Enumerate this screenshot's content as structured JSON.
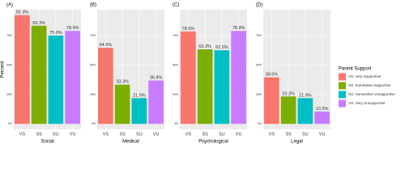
{
  "chart_data": [
    {
      "type": "bar",
      "title": "(A)",
      "x_label": "Social",
      "y_label": "Percent",
      "categories": [
        "VS",
        "SS",
        "SU",
        "VU"
      ],
      "values": [
        92.3,
        83.3,
        75.0,
        78.9
      ],
      "value_labels": [
        "92.3%",
        "83.3%",
        "75.0%",
        "78.9%"
      ],
      "colors": [
        "#F8766D",
        "#7CAE00",
        "#00BFC4",
        "#C77CFF"
      ],
      "ylim": [
        -4.6,
        96.9
      ],
      "yticks": [
        {
          "value": 0,
          "label": "0%"
        },
        {
          "value": 25,
          "label": "25%"
        },
        {
          "value": 50,
          "label": "50%"
        },
        {
          "value": 75,
          "label": "75%"
        }
      ],
      "grid": true
    },
    {
      "type": "bar",
      "title": "(B)",
      "x_label": "Medical",
      "categories": [
        "VS",
        "SS",
        "SU",
        "VU"
      ],
      "values": [
        64.6,
        33.3,
        21.9,
        36.8
      ],
      "value_labels": [
        "64.6%",
        "33.3%",
        "21.9%",
        "36.8%"
      ],
      "colors": [
        "#F8766D",
        "#7CAE00",
        "#00BFC4",
        "#C77CFF"
      ],
      "ylim": [
        -4.6,
        96.9
      ],
      "yticks": [
        {
          "value": 0,
          "label": "0%"
        },
        {
          "value": 25,
          "label": "25%"
        },
        {
          "value": 50,
          "label": "50%"
        },
        {
          "value": 75,
          "label": "75%"
        }
      ],
      "grid": true
    },
    {
      "type": "bar",
      "title": "(C)",
      "x_label": "Psychological",
      "categories": [
        "VS",
        "SS",
        "SU",
        "VU"
      ],
      "values": [
        78.5,
        63.3,
        62.5,
        78.9
      ],
      "value_labels": [
        "78.5%",
        "63.3%",
        "62.5%",
        "78.9%"
      ],
      "colors": [
        "#F8766D",
        "#7CAE00",
        "#00BFC4",
        "#C77CFF"
      ],
      "ylim": [
        -4.6,
        96.9
      ],
      "yticks": [
        {
          "value": 0,
          "label": "0%"
        },
        {
          "value": 25,
          "label": "25%"
        },
        {
          "value": 50,
          "label": "50%"
        },
        {
          "value": 75,
          "label": "75%"
        }
      ],
      "grid": true
    },
    {
      "type": "bar",
      "title": "(D)",
      "x_label": "Legal",
      "categories": [
        "VS",
        "SS",
        "SU",
        "VU"
      ],
      "values": [
        39.5,
        23.3,
        21.9,
        10.5
      ],
      "value_labels": [
        "39.5%",
        "23.3%",
        "21.9%",
        "10.5%"
      ],
      "colors": [
        "#F8766D",
        "#7CAE00",
        "#00BFC4",
        "#C77CFF"
      ],
      "ylim": [
        -4.6,
        96.9
      ],
      "yticks": [
        {
          "value": 0,
          "label": "0%"
        },
        {
          "value": 25,
          "label": "25%"
        },
        {
          "value": 50,
          "label": "50%"
        },
        {
          "value": 75,
          "label": "75%"
        }
      ],
      "grid": true
    }
  ],
  "legend": {
    "title": "Parent Support",
    "items": [
      {
        "label": "VS: Very Supportive",
        "color": "#F8766D"
      },
      {
        "label": "SS: Somewhat Supportive",
        "color": "#7CAE00"
      },
      {
        "label": "SU: Somewhat Unsupportive",
        "color": "#00BFC4"
      },
      {
        "label": "VU: Very Unsupportive",
        "color": "#C77CFF"
      }
    ]
  }
}
